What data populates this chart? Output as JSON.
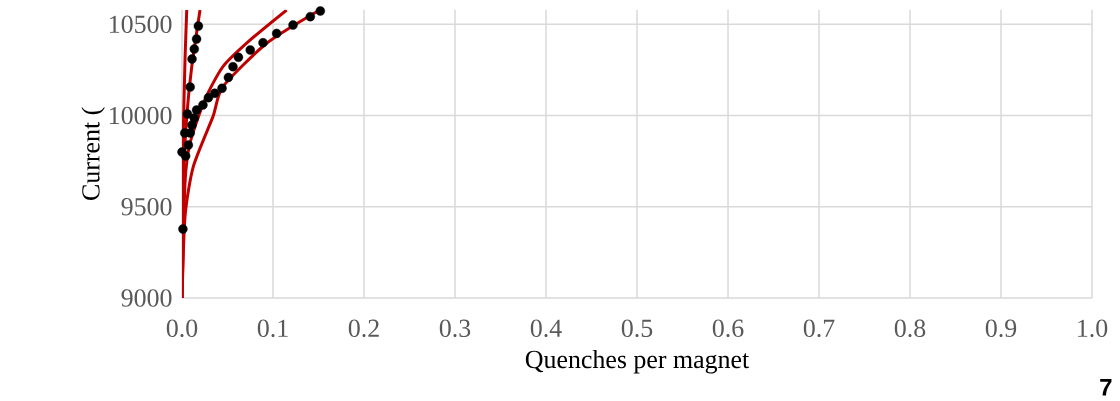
{
  "chart_data": {
    "type": "scatter",
    "ylabel": "Current (",
    "xlabel": "Quenches per magnet",
    "annotations": [
      "7"
    ],
    "xlim": [
      0,
      1.0
    ],
    "ylim": [
      9000,
      10580
    ],
    "xticks": [
      {
        "value": 0,
        "label": "0.0"
      },
      {
        "value": 0.1,
        "label": "0.1"
      },
      {
        "value": 0.2,
        "label": "0.2"
      },
      {
        "value": 0.3,
        "label": "0.3"
      },
      {
        "value": 0.4,
        "label": "0.4"
      },
      {
        "value": 0.5,
        "label": "0.5"
      },
      {
        "value": 0.6,
        "label": "0.6"
      },
      {
        "value": 0.7,
        "label": "0.7"
      },
      {
        "value": 0.8,
        "label": "0.8"
      },
      {
        "value": 0.9,
        "label": "0.9"
      },
      {
        "value": 1.0,
        "label": "1.0"
      }
    ],
    "yticks": [
      9000,
      9500,
      10000,
      10500
    ],
    "grid": true,
    "series": [
      {
        "type": "line",
        "color": "#c00000",
        "x": [
          0,
          0.0033,
          0.0088,
          0.025,
          0.045,
          0.075,
          0.115
        ],
        "values": [
          9000,
          9630,
          9848,
          10085,
          10268,
          10414,
          10578
        ]
      },
      {
        "type": "line",
        "color": "#c00000",
        "x": [
          0,
          0.0033,
          0.0124,
          0.034,
          0.045,
          0.093,
          0.148
        ],
        "values": [
          9000,
          9446,
          9720,
          9994,
          10158,
          10396,
          10569
        ]
      },
      {
        "type": "line",
        "color": "#c00000",
        "x": [
          0,
          0.0005,
          0.0014,
          0.0033,
          0.0052
        ],
        "values": [
          9000,
          9537,
          9904,
          10304,
          10578
        ]
      },
      {
        "type": "line",
        "color": "#c00000",
        "x": [
          0,
          0.0014,
          0.0052,
          0.0107,
          0.0198
        ],
        "values": [
          9000,
          9630,
          9994,
          10268,
          10578
        ]
      },
      {
        "marker": "circle",
        "color": "#000000",
        "x": [
          0.018,
          0.016,
          0.0135,
          0.011,
          0.009,
          0.006,
          0.0135,
          0.011,
          0.009,
          0.003,
          0.007,
          0.0,
          0.004,
          0.001
        ],
        "values": [
          10490,
          10419,
          10364,
          10310,
          10156,
          10008,
          9986,
          9948,
          9904,
          9904,
          9838,
          9800,
          9778,
          9378
        ]
      },
      {
        "marker": "circle",
        "color": "#000000",
        "x": [
          0.016,
          0.023,
          0.029,
          0.036,
          0.044,
          0.051,
          0.056,
          0.062,
          0.075,
          0.089,
          0.104,
          0.122,
          0.141,
          0.152
        ],
        "values": [
          10030,
          10058,
          10098,
          10122,
          10149,
          10209,
          10268,
          10319,
          10359,
          10399,
          10450,
          10496,
          10542,
          10573
        ]
      }
    ]
  }
}
